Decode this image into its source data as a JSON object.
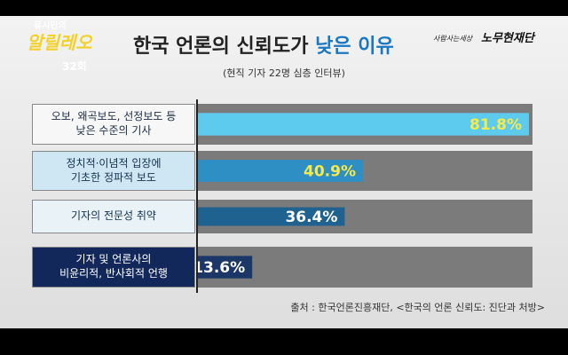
{
  "logo": {
    "top": "유시민의",
    "name": "알릴레오",
    "episode": "32회",
    "partner_small": "사람사는세상",
    "partner": "노무현재단"
  },
  "chart_data": {
    "type": "bar",
    "orientation": "horizontal",
    "title": "한국 언론의 신뢰도가 ",
    "title_highlight": "낮은 이유",
    "subtitle": "(현직 기자 22명 심층 인터뷰)",
    "categories": [
      "오보, 왜곡보도, 선정보도 등\n낮은 수준의 기사",
      "정치적·이념적 입장에\n기초한 정파적 보도",
      "기자의 전문성 취약",
      "기자 및 언론사의\n비윤리적, 반사회적 언행"
    ],
    "values": [
      81.8,
      40.9,
      36.4,
      13.6
    ],
    "value_labels": [
      "81.8%",
      "40.9%",
      "36.4%",
      "13.6%"
    ],
    "colors": [
      "#5ccbee",
      "#2d8fc4",
      "#1f628f",
      "#1b3768"
    ],
    "track_color": "#7b7b7b",
    "source": "출처 : 한국언론진흥재단, <한국의 언론 신뢰도: 진단과 처방>"
  }
}
